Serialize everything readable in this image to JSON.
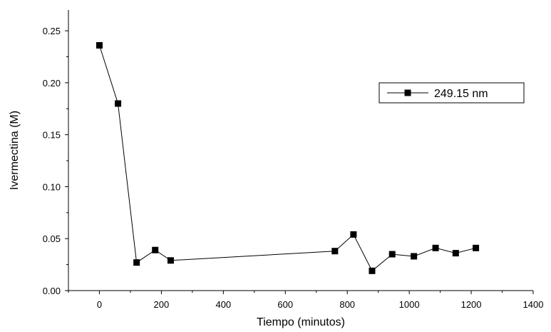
{
  "chart_data": {
    "type": "line",
    "title": "",
    "xlabel": "Tiempo (minutos)",
    "ylabel": "Ivermectina (M)",
    "xlim": [
      -100,
      1400
    ],
    "ylim": [
      0.0,
      0.27
    ],
    "x_ticks": [
      0,
      200,
      400,
      600,
      800,
      1000,
      1200,
      1400
    ],
    "y_ticks": [
      0.0,
      0.05,
      0.1,
      0.15,
      0.2,
      0.25
    ],
    "x_tick_labels": [
      "0",
      "200",
      "400",
      "600",
      "800",
      "1000",
      "1200",
      "1400"
    ],
    "y_tick_labels": [
      "0.00",
      "0.05",
      "0.10",
      "0.15",
      "0.20",
      "0.25"
    ],
    "grid": false,
    "legend_position": "top-right",
    "series": [
      {
        "name": "249.15 nm",
        "marker": "square",
        "color": "#000000",
        "x": [
          0,
          60,
          120,
          180,
          230,
          760,
          820,
          880,
          945,
          1015,
          1085,
          1150,
          1215
        ],
        "y": [
          0.236,
          0.18,
          0.027,
          0.039,
          0.029,
          0.038,
          0.054,
          0.019,
          0.035,
          0.033,
          0.041,
          0.036,
          0.041
        ]
      }
    ]
  }
}
